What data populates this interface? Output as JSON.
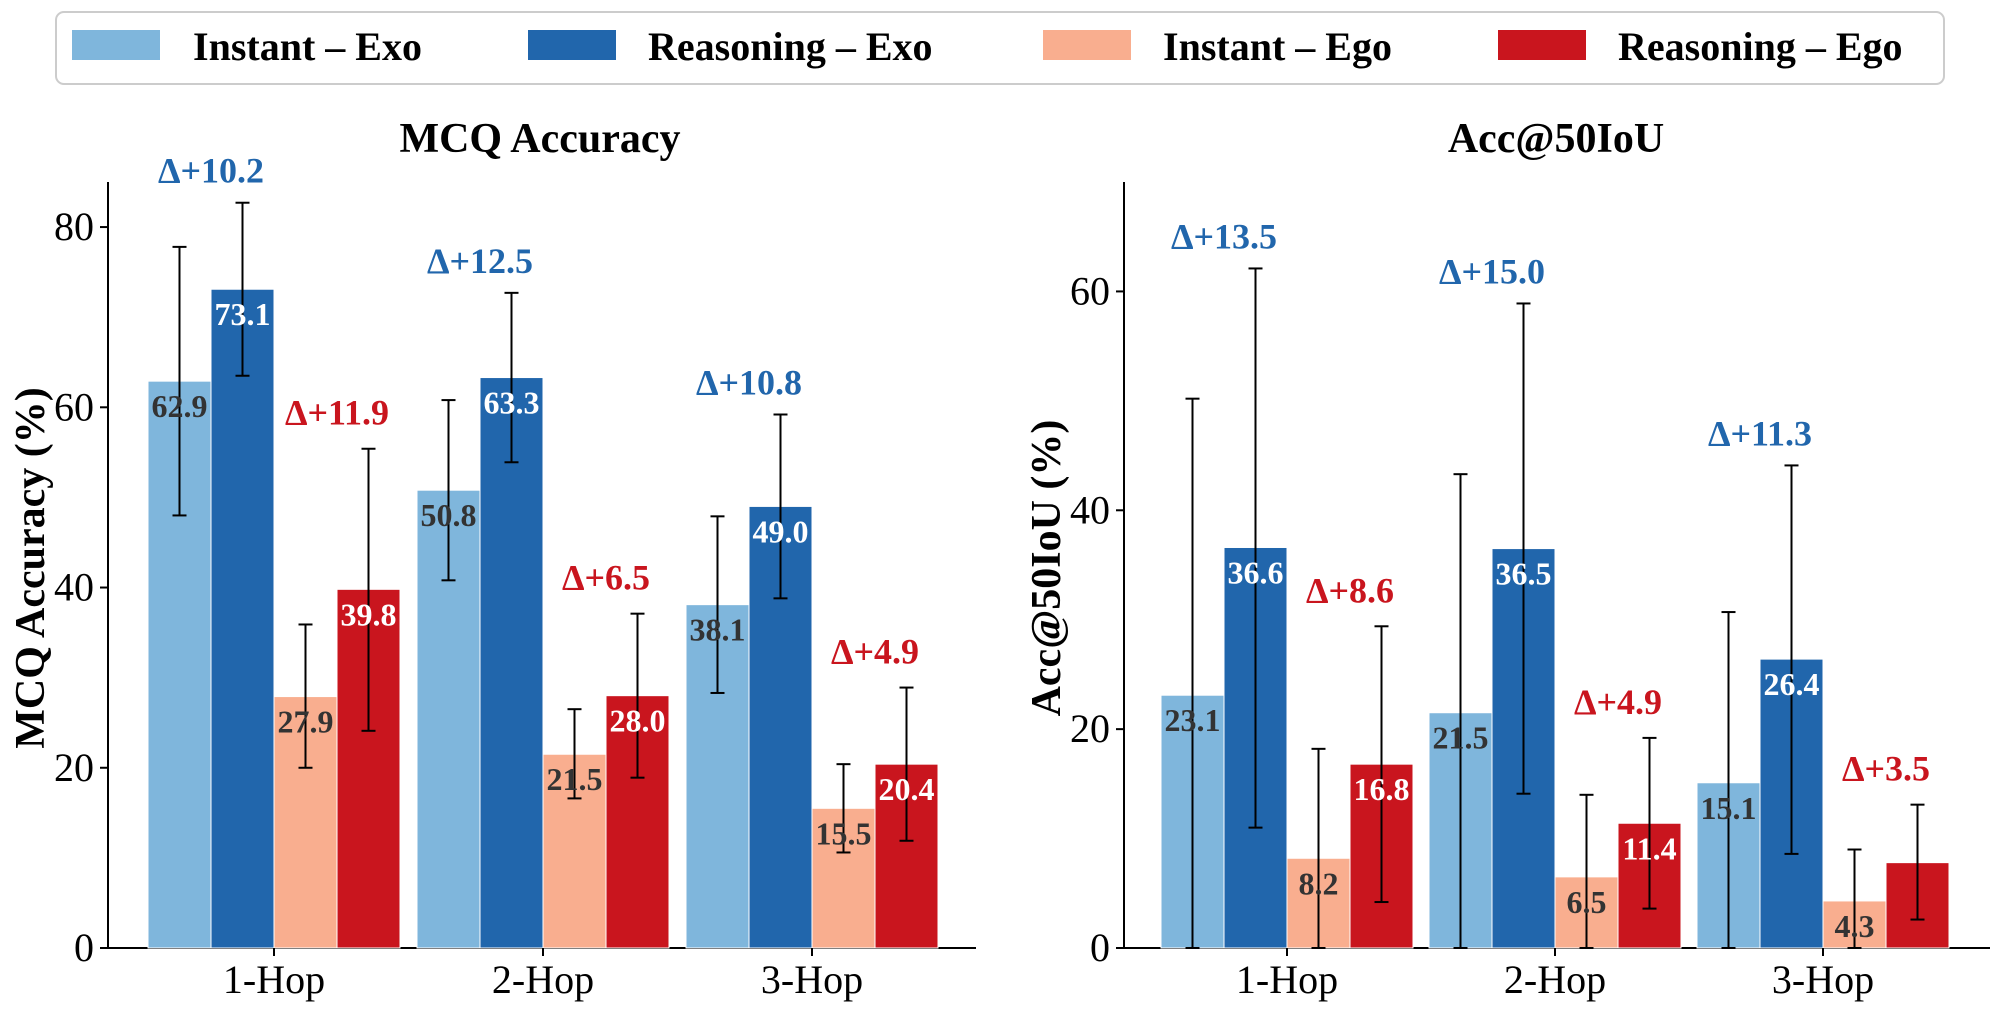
{
  "legend": [
    {
      "label": "Instant – Exo",
      "color": "#7fb6dc"
    },
    {
      "label": "Reasoning – Exo",
      "color": "#2166ac"
    },
    {
      "label": "Instant – Ego",
      "color": "#f9ae8f"
    },
    {
      "label": "Reasoning – Ego",
      "color": "#c9151e"
    }
  ],
  "colors": {
    "exo_delta": "#2166ac",
    "ego_delta": "#c9151e",
    "label_dark": "#333333",
    "label_light": "#ffffff"
  },
  "chart_data": [
    {
      "type": "bar",
      "title": "MCQ Accuracy",
      "xlabel": "",
      "ylabel": "MCQ Accuracy (%)",
      "ylim": [
        0,
        85
      ],
      "yticks": [
        0,
        20,
        40,
        60,
        80
      ],
      "categories": [
        "1-Hop",
        "2-Hop",
        "3-Hop"
      ],
      "series": [
        {
          "name": "Instant – Exo",
          "values": [
            62.9,
            50.8,
            38.1
          ],
          "err_low": [
            48.0,
            40.8,
            28.3
          ],
          "err_high": [
            77.8,
            60.8,
            47.9
          ],
          "labels": [
            "62.9",
            "50.8",
            "38.1"
          ]
        },
        {
          "name": "Reasoning – Exo",
          "values": [
            73.1,
            63.3,
            49.0
          ],
          "err_low": [
            63.5,
            53.9,
            38.8
          ],
          "err_high": [
            82.7,
            72.7,
            59.2
          ],
          "labels": [
            "73.1",
            "63.3",
            "49.0"
          ]
        },
        {
          "name": "Instant – Ego",
          "values": [
            27.9,
            21.5,
            15.5
          ],
          "err_low": [
            20.0,
            16.6,
            10.6
          ],
          "err_high": [
            35.9,
            26.5,
            20.4
          ],
          "labels": [
            "27.9",
            "21.5",
            "15.5"
          ]
        },
        {
          "name": "Reasoning – Ego",
          "values": [
            39.8,
            28.0,
            20.4
          ],
          "err_low": [
            24.1,
            18.9,
            11.9
          ],
          "err_high": [
            55.4,
            37.1,
            28.9
          ],
          "labels": [
            "39.8",
            "28.0",
            "20.4"
          ]
        }
      ],
      "deltas_exo": [
        "Δ+10.2",
        "Δ+12.5",
        "Δ+10.8"
      ],
      "deltas_ego": [
        "Δ+11.9",
        "Δ+6.5",
        "Δ+4.9"
      ]
    },
    {
      "type": "bar",
      "title": "Acc@50IoU",
      "xlabel": "",
      "ylabel": "Acc@50IoU (%)",
      "ylim": [
        0,
        70
      ],
      "yticks": [
        0,
        20,
        40,
        60
      ],
      "categories": [
        "1-Hop",
        "2-Hop",
        "3-Hop"
      ],
      "series": [
        {
          "name": "Instant – Exo",
          "values": [
            23.1,
            21.5,
            15.1
          ],
          "err_low": [
            0.0,
            0.0,
            0.0
          ],
          "err_high": [
            50.2,
            43.3,
            30.7
          ],
          "labels": [
            "23.1",
            "21.5",
            "15.1"
          ]
        },
        {
          "name": "Reasoning – Exo",
          "values": [
            36.6,
            36.5,
            26.4
          ],
          "err_low": [
            11.0,
            14.1,
            8.6
          ],
          "err_high": [
            62.1,
            58.9,
            44.1
          ],
          "labels": [
            "36.6",
            "36.5",
            "26.4"
          ]
        },
        {
          "name": "Instant – Ego",
          "values": [
            8.2,
            6.5,
            4.3
          ],
          "err_low": [
            0.0,
            0.0,
            0.0
          ],
          "err_high": [
            18.2,
            14.0,
            9.0
          ],
          "labels": [
            "8.2",
            "6.5",
            "4.3"
          ]
        },
        {
          "name": "Reasoning – Ego",
          "values": [
            16.8,
            11.4,
            7.8
          ],
          "err_low": [
            4.2,
            3.6,
            2.6
          ],
          "err_high": [
            29.4,
            19.2,
            13.1
          ],
          "labels": [
            "16.8",
            "11.4",
            ""
          ]
        }
      ],
      "deltas_exo": [
        "Δ+13.5",
        "Δ+15.0",
        "Δ+11.3"
      ],
      "deltas_ego": [
        "Δ+8.6",
        "Δ+4.9",
        "Δ+3.5"
      ]
    }
  ]
}
